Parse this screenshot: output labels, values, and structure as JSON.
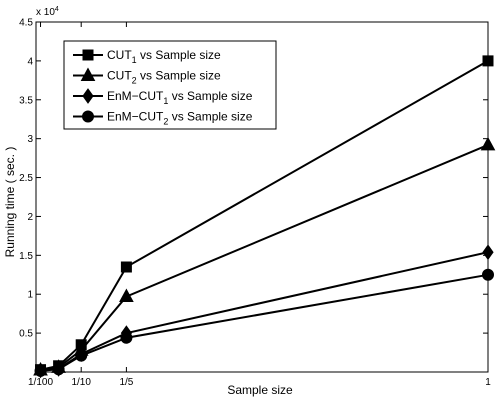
{
  "chart_data": {
    "type": "line",
    "xlabel": "Sample size",
    "ylabel": "Running time ( sec. )",
    "y_multiplier_label": {
      "base": "x 10",
      "exponent": "4"
    },
    "xlim": [
      0,
      1
    ],
    "ylim": [
      0,
      45000
    ],
    "x_ticks": [
      {
        "value": 0.01,
        "label": "1/100"
      },
      {
        "value": 0.1,
        "label": "1/10"
      },
      {
        "value": 0.2,
        "label": "1/5"
      },
      {
        "value": 1,
        "label": "1"
      }
    ],
    "y_ticks": [
      {
        "value": 5000,
        "label": "0.5"
      },
      {
        "value": 10000,
        "label": "1"
      },
      {
        "value": 15000,
        "label": "1.5"
      },
      {
        "value": 20000,
        "label": "2"
      },
      {
        "value": 25000,
        "label": "2.5"
      },
      {
        "value": 30000,
        "label": "3"
      },
      {
        "value": 35000,
        "label": "3.5"
      },
      {
        "value": 40000,
        "label": "4"
      },
      {
        "value": 45000,
        "label": "4.5"
      }
    ],
    "grid": false,
    "legend_position": "top-left",
    "series": [
      {
        "name": "CUT",
        "name_sub": "1",
        "name_rest": " vs Sample size",
        "marker": "square",
        "x": [
          0.01,
          0.05,
          0.1,
          0.2,
          1
        ],
        "y": [
          300,
          800,
          3500,
          13500,
          40000
        ]
      },
      {
        "name": "CUT",
        "name_sub": "2",
        "name_rest": " vs Sample size",
        "marker": "triangle",
        "x": [
          0.01,
          0.05,
          0.1,
          0.2,
          1
        ],
        "y": [
          250,
          600,
          2800,
          9700,
          29200
        ]
      },
      {
        "name": "EnM−CUT",
        "name_sub": "1",
        "name_rest": " vs Sample size",
        "marker": "diamond",
        "x": [
          0.01,
          0.05,
          0.1,
          0.2,
          1
        ],
        "y": [
          200,
          400,
          2300,
          5000,
          15400
        ]
      },
      {
        "name": "EnM−CUT",
        "name_sub": "2",
        "name_rest": " vs Sample size",
        "marker": "circle",
        "x": [
          0.01,
          0.05,
          0.1,
          0.2,
          1
        ],
        "y": [
          150,
          350,
          2100,
          4400,
          12500
        ]
      }
    ]
  }
}
